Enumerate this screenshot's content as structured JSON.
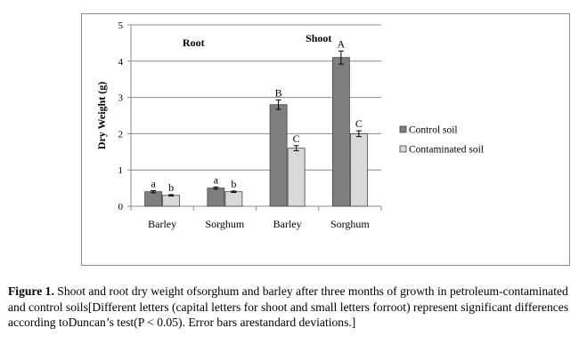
{
  "chart_data": {
    "type": "bar",
    "title": "",
    "xlabel": "",
    "ylabel": "Dry Weight (g)",
    "ylim": [
      0,
      5
    ],
    "yticks": [
      0,
      1,
      2,
      3,
      4,
      5
    ],
    "grid": true,
    "legend_position": "right",
    "categories": [
      "Barley",
      "Sorghum",
      "Barley",
      "Sorghum"
    ],
    "group_labels": [
      {
        "text": "Root",
        "categories": [
          0,
          1
        ]
      },
      {
        "text": "Shoot",
        "categories": [
          2,
          3
        ]
      }
    ],
    "series": [
      {
        "name": "Control soil",
        "color": "#7f7f7f",
        "values": [
          0.4,
          0.5,
          2.8,
          4.1
        ],
        "errors": [
          0.03,
          0.03,
          0.13,
          0.18
        ],
        "letters": [
          "a",
          "a",
          "B",
          "A"
        ]
      },
      {
        "name": "Contaminated soil",
        "color": "#d9d9d9",
        "values": [
          0.3,
          0.4,
          1.6,
          2.0
        ],
        "errors": [
          0.02,
          0.02,
          0.07,
          0.08
        ],
        "letters": [
          "b",
          "b",
          "C",
          "C"
        ]
      }
    ]
  },
  "caption": {
    "label": "Figure 1.",
    "text": " Shoot and root dry weight ofsorghum and barley after three months of growth in petroleum-contaminated and control soils[Different letters (capital letters for shoot and small letters forroot) represent significant differences according toDuncan’s test(P < 0.05). Error bars arestandard deviations.]"
  }
}
